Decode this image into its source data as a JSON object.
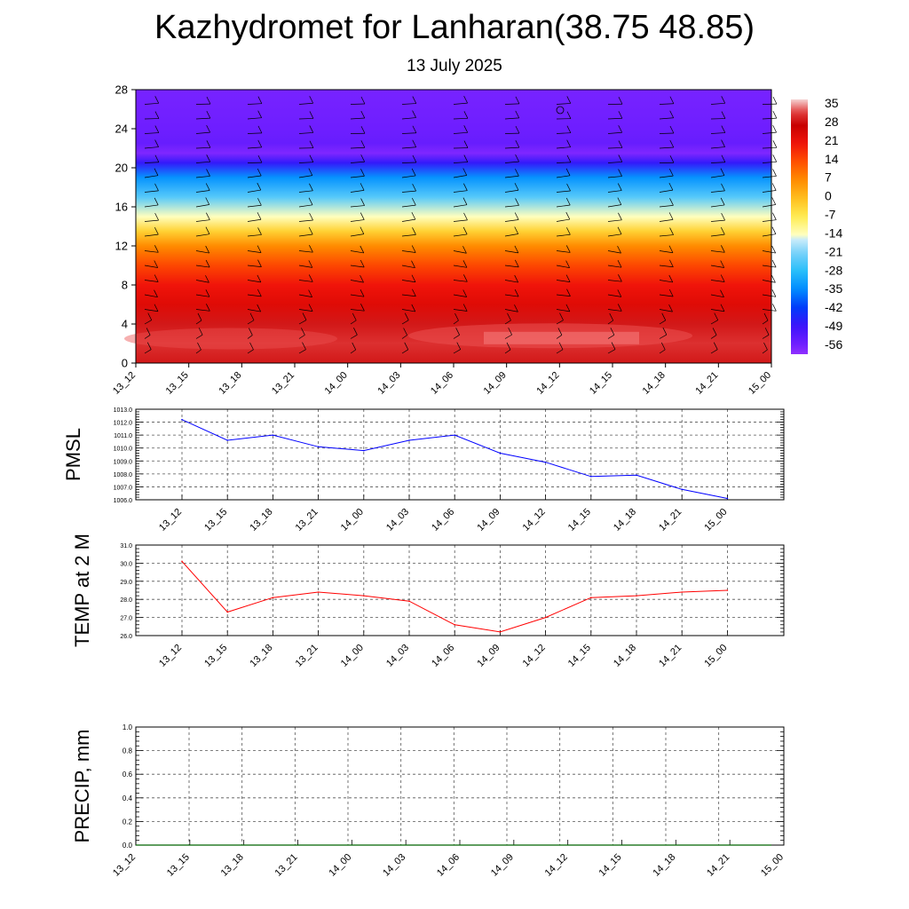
{
  "title": "Kazhydromet for Lanharan(38.75 48.85)",
  "subtitle": "13 July 2025",
  "chart_data": [
    {
      "type": "heatmap",
      "times": [
        "13_12",
        "13_15",
        "13_18",
        "13_21",
        "14_00",
        "14_03",
        "14_06",
        "14_09",
        "14_12",
        "14_15",
        "14_18",
        "14_21",
        "15_00"
      ],
      "ylim": [
        0,
        28
      ],
      "yticks": [
        "0",
        "4",
        "8",
        "12",
        "16",
        "20",
        "24",
        "28"
      ],
      "colorbar_labels": [
        "35",
        "28",
        "21",
        "14",
        "7",
        "0",
        "-7",
        "-14",
        "-21",
        "-28",
        "-35",
        "-42",
        "-49",
        "-56"
      ],
      "colorbar_range": [
        -60,
        38
      ],
      "level_temperature_profile": [
        {
          "y": 0,
          "value": 30
        },
        {
          "y": 2,
          "value": 32
        },
        {
          "y": 4,
          "value": 30
        },
        {
          "y": 6,
          "value": 24
        },
        {
          "y": 8,
          "value": 21
        },
        {
          "y": 10,
          "value": 15
        },
        {
          "y": 12,
          "value": 7
        },
        {
          "y": 13.5,
          "value": -3
        },
        {
          "y": 15,
          "value": -14
        },
        {
          "y": 17,
          "value": -24
        },
        {
          "y": 19,
          "value": -34
        },
        {
          "y": 20.5,
          "value": -48
        },
        {
          "y": 21.5,
          "value": -58
        },
        {
          "y": 22.5,
          "value": -55
        },
        {
          "y": 24,
          "value": -56
        },
        {
          "y": 28,
          "value": -57
        }
      ],
      "wind_barbs": "shown"
    },
    {
      "type": "line",
      "ylabel": "PMSL",
      "x": [
        "13_12",
        "13_15",
        "13_18",
        "13_21",
        "14_00",
        "14_03",
        "14_06",
        "14_09",
        "14_12",
        "14_15",
        "14_18",
        "14_21",
        "15_00"
      ],
      "values": [
        1012.2,
        1010.6,
        1011.0,
        1010.1,
        1009.8,
        1010.6,
        1011.0,
        1009.6,
        1008.9,
        1007.8,
        1007.9,
        1006.8,
        1006.1
      ],
      "ylim": [
        1006.0,
        1013.0
      ],
      "yticks": [
        "1006.0",
        "1007.0",
        "1008.0",
        "1009.0",
        "1010.0",
        "1011.0",
        "1012.0",
        "1013.0"
      ],
      "color": "#0000ff",
      "grid": true
    },
    {
      "type": "line",
      "ylabel": "TEMP at 2 M",
      "x": [
        "13_12",
        "13_15",
        "13_18",
        "13_21",
        "14_00",
        "14_03",
        "14_06",
        "14_09",
        "14_12",
        "14_15",
        "14_18",
        "14_21",
        "15_00"
      ],
      "values": [
        30.1,
        27.3,
        28.1,
        28.4,
        28.2,
        27.9,
        26.6,
        26.2,
        27.0,
        28.1,
        28.2,
        28.4,
        28.5
      ],
      "ylim": [
        26.0,
        31.0
      ],
      "yticks": [
        "26.0",
        "27.0",
        "28.0",
        "29.0",
        "30.0",
        "31.0"
      ],
      "color": "#ff0000",
      "grid": true
    },
    {
      "type": "line",
      "ylabel": "PRECIP, mm",
      "x": [
        "13_12",
        "13_15",
        "13_18",
        "13_21",
        "14_00",
        "14_03",
        "14_06",
        "14_09",
        "14_12",
        "14_15",
        "14_18",
        "14_21",
        "15_00"
      ],
      "values": [
        0,
        0,
        0,
        0,
        0,
        0,
        0,
        0,
        0,
        0,
        0,
        0,
        0
      ],
      "ylim": [
        0.0,
        1.0
      ],
      "yticks": [
        "0.0",
        "0.2",
        "0.4",
        "0.6",
        "0.8",
        "1.0"
      ],
      "color": "#006400",
      "grid": true
    }
  ]
}
